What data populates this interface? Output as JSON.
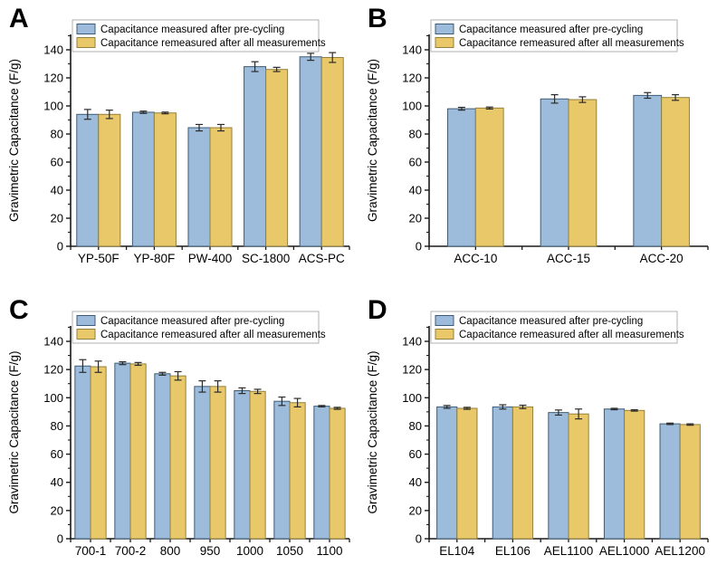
{
  "figure": {
    "legend_labels": [
      "Capacitance measured after pre-cycling",
      "Capacitance remeasured after all measurements"
    ],
    "colors": {
      "series1_fill": "#9DBCDB",
      "series1_edge": "#3E5C76",
      "series2_fill": "#E9C869",
      "series2_edge": "#94803B",
      "error_bar": "#2B2B2B",
      "axis": "#1A1A1A",
      "legend_border": "#B0B0B0"
    },
    "ylabel": "Gravimetric Capacitance (F/g)"
  },
  "chart_data": [
    {
      "type": "bar",
      "panel_label": "A",
      "ylabel": "Gravimetric Capacitance (F/g)",
      "ylim": [
        0,
        151
      ],
      "yticks": [
        0,
        20,
        40,
        60,
        80,
        100,
        120,
        140
      ],
      "grid": false,
      "legend_position": "top",
      "categories": [
        "YP-50F",
        "YP-80F",
        "PW-400",
        "SC-1800",
        "ACS-PC"
      ],
      "bar_pair_fraction": 0.78,
      "series": [
        {
          "name": "Capacitance measured after pre-cycling",
          "values": [
            94,
            95.5,
            84.5,
            128,
            135
          ],
          "errors": [
            3.5,
            0.8,
            2.3,
            3.5,
            2.5
          ]
        },
        {
          "name": "Capacitance remeasured after all measurements",
          "values": [
            94,
            95,
            84.5,
            126,
            134.5
          ],
          "errors": [
            3,
            0.6,
            2.3,
            1.5,
            3.5
          ]
        }
      ]
    },
    {
      "type": "bar",
      "panel_label": "B",
      "ylabel": "Gravimetric Capacitance (F/g)",
      "ylim": [
        0,
        151
      ],
      "yticks": [
        0,
        20,
        40,
        60,
        80,
        100,
        120,
        140
      ],
      "grid": false,
      "legend_position": "top",
      "categories": [
        "ACC-10",
        "ACC-15",
        "ACC-20"
      ],
      "bar_pair_fraction": 0.6,
      "series": [
        {
          "name": "Capacitance measured after pre-cycling",
          "values": [
            98,
            105,
            107.5
          ],
          "errors": [
            1,
            3,
            2
          ]
        },
        {
          "name": "Capacitance remeasured after all measurements",
          "values": [
            98.5,
            104.5,
            106
          ],
          "errors": [
            0.7,
            2,
            2
          ]
        }
      ]
    },
    {
      "type": "bar",
      "panel_label": "C",
      "ylabel": "Gravimetric Capacitance (F/g)",
      "ylim": [
        0,
        151
      ],
      "yticks": [
        0,
        20,
        40,
        60,
        80,
        100,
        120,
        140
      ],
      "grid": false,
      "legend_position": "top",
      "categories": [
        "700-1",
        "700-2",
        "800",
        "950",
        "1000",
        "1050",
        "1100"
      ],
      "bar_pair_fraction": 0.78,
      "series": [
        {
          "name": "Capacitance measured after pre-cycling",
          "values": [
            122.5,
            124.5,
            117,
            108,
            105,
            97.5,
            94
          ],
          "errors": [
            4.5,
            1,
            1,
            4,
            2,
            3,
            0.5
          ]
        },
        {
          "name": "Capacitance remeasured after all measurements",
          "values": [
            122,
            124,
            115.5,
            108,
            104.5,
            96.5,
            92.5
          ],
          "errors": [
            4,
            1,
            3,
            4,
            1.5,
            3,
            0.7
          ]
        }
      ]
    },
    {
      "type": "bar",
      "panel_label": "D",
      "ylabel": "Gravimetric Capacitance (F/g)",
      "ylim": [
        0,
        151
      ],
      "yticks": [
        0,
        20,
        40,
        60,
        80,
        100,
        120,
        140
      ],
      "grid": false,
      "legend_position": "top",
      "categories": [
        "EL104",
        "EL106",
        "AEL1100",
        "AEL1000",
        "AEL1200"
      ],
      "bar_pair_fraction": 0.72,
      "series": [
        {
          "name": "Capacitance measured after pre-cycling",
          "values": [
            93.5,
            93.5,
            89.5,
            92,
            81.5
          ],
          "errors": [
            1,
            1.5,
            1.8,
            0.5,
            0.5
          ]
        },
        {
          "name": "Capacitance remeasured after all measurements",
          "values": [
            92.5,
            93.5,
            88.5,
            91,
            81
          ],
          "errors": [
            0.7,
            1.2,
            3.5,
            0.5,
            0.5
          ]
        }
      ]
    }
  ]
}
